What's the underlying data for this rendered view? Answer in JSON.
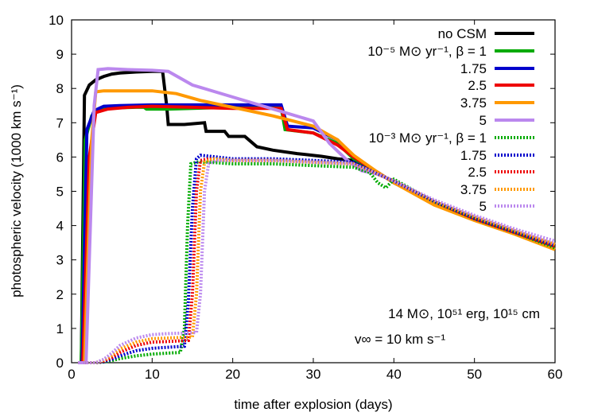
{
  "chart_data": {
    "type": "line",
    "xlabel": "time after explosion (days)",
    "ylabel": "photospheric velocity (1000 km s⁻¹)",
    "xlim": [
      0,
      60
    ],
    "ylim": [
      0,
      10
    ],
    "xticks": [
      0,
      10,
      20,
      30,
      40,
      50,
      60
    ],
    "yticks": [
      0,
      1,
      2,
      3,
      4,
      5,
      6,
      7,
      8,
      9,
      10
    ],
    "grid": false,
    "legend_position": "top-right",
    "annotation": {
      "line1": "14 M⊙, 10⁵¹ erg, 10¹⁵ cm",
      "line2": "v∞ = 10 km s⁻¹"
    },
    "legend_headers": {
      "group_a": "10⁻⁵ M⊙ yr⁻¹, β = 1",
      "group_b": "10⁻³ M⊙ yr⁻¹, β = 1"
    },
    "series": [
      {
        "name": "no CSM",
        "color": "#000000",
        "style": "solid",
        "x": [
          0.8,
          1.2,
          1.6,
          2.2,
          3,
          4,
          5,
          6,
          8,
          10,
          11.3,
          11.8,
          12,
          14,
          16.5,
          16.7,
          19,
          19.5,
          21.5,
          22,
          23,
          25,
          28,
          31,
          33,
          35,
          38,
          40,
          45,
          50,
          55,
          60
        ],
        "y": [
          0,
          0,
          7.8,
          8.1,
          8.25,
          8.35,
          8.42,
          8.45,
          8.48,
          8.5,
          8.5,
          7.5,
          6.95,
          6.95,
          7.0,
          6.75,
          6.75,
          6.6,
          6.6,
          6.5,
          6.3,
          6.2,
          6.1,
          6.02,
          5.95,
          5.9,
          5.55,
          5.25,
          4.65,
          4.2,
          3.8,
          3.35
        ]
      },
      {
        "name": "1",
        "color": "#00aa00",
        "style": "solid",
        "x": [
          0.8,
          1.2,
          1.7,
          2.5,
          3.5,
          5,
          8,
          9,
          9.3,
          12,
          15,
          20,
          26,
          26.5,
          30,
          33,
          35,
          38,
          40,
          45,
          50,
          55,
          60
        ],
        "y": [
          0,
          0,
          6.5,
          7.2,
          7.38,
          7.43,
          7.45,
          7.45,
          7.4,
          7.4,
          7.42,
          7.45,
          7.45,
          6.8,
          6.7,
          6.4,
          5.95,
          5.55,
          5.25,
          4.65,
          4.2,
          3.8,
          3.35
        ]
      },
      {
        "name": "1.75",
        "color": "#0000cc",
        "style": "solid",
        "x": [
          0.8,
          1.3,
          1.9,
          2.8,
          4,
          6,
          10,
          15,
          20,
          26,
          26.8,
          30,
          33,
          35,
          38,
          40,
          45,
          50,
          55,
          60
        ],
        "y": [
          0,
          0,
          6.8,
          7.35,
          7.48,
          7.5,
          7.52,
          7.52,
          7.52,
          7.52,
          6.9,
          6.85,
          6.5,
          6.0,
          5.55,
          5.25,
          4.65,
          4.2,
          3.8,
          3.35
        ]
      },
      {
        "name": "2.5",
        "color": "#ee0000",
        "style": "solid",
        "x": [
          0.8,
          1.4,
          2.2,
          3,
          4.5,
          7,
          10,
          15,
          20,
          26,
          26.8,
          30,
          33,
          35,
          38,
          40,
          45,
          50,
          55,
          60
        ],
        "y": [
          0,
          0,
          6.0,
          7.3,
          7.4,
          7.45,
          7.48,
          7.45,
          7.42,
          7.42,
          6.8,
          6.7,
          6.35,
          6.0,
          5.55,
          5.25,
          4.65,
          4.2,
          3.8,
          3.35
        ]
      },
      {
        "name": "3.75",
        "color": "#ff9900",
        "style": "solid",
        "x": [
          0.8,
          1.6,
          2.5,
          3,
          4,
          6,
          10,
          13,
          16,
          20,
          25,
          30,
          33,
          35,
          38,
          40,
          45,
          50,
          55,
          60
        ],
        "y": [
          0,
          0,
          6.5,
          7.9,
          7.93,
          7.93,
          7.93,
          7.85,
          7.65,
          7.45,
          7.2,
          6.9,
          6.5,
          6.05,
          5.55,
          5.25,
          4.6,
          4.15,
          3.75,
          3.3
        ]
      },
      {
        "name": "5",
        "color": "#bb88ee",
        "style": "solid",
        "x": [
          0.8,
          1.8,
          2.8,
          3.3,
          4.5,
          7,
          10,
          12,
          15,
          20,
          25,
          30,
          32,
          34,
          36,
          38,
          40,
          45,
          50,
          55,
          60
        ],
        "y": [
          0,
          0,
          7.5,
          8.55,
          8.58,
          8.55,
          8.53,
          8.5,
          8.1,
          7.75,
          7.4,
          7.05,
          6.4,
          5.95,
          5.6,
          5.5,
          5.3,
          4.7,
          4.25,
          3.85,
          3.45
        ]
      },
      {
        "name": "1",
        "color": "#00aa00",
        "style": "dotted",
        "x": [
          1.5,
          3,
          4,
          5,
          6,
          8,
          10,
          12,
          13.5,
          14,
          14.4,
          14.8,
          15.5,
          17,
          20,
          25,
          30,
          35,
          37,
          38,
          39,
          40,
          45,
          50,
          55,
          60
        ],
        "y": [
          0,
          0,
          0.02,
          0.06,
          0.12,
          0.2,
          0.25,
          0.28,
          0.3,
          1.0,
          4.0,
          5.8,
          5.85,
          5.85,
          5.8,
          5.8,
          5.75,
          5.7,
          5.55,
          5.25,
          5.1,
          5.35,
          4.7,
          4.2,
          3.8,
          3.35
        ]
      },
      {
        "name": "1.75",
        "color": "#0000cc",
        "style": "dotted",
        "x": [
          1.5,
          3,
          4,
          5,
          6,
          8,
          10,
          12,
          14,
          14.5,
          15,
          15.5,
          16,
          18,
          20,
          25,
          30,
          35,
          38,
          40,
          45,
          50,
          55,
          60
        ],
        "y": [
          0,
          0,
          0.03,
          0.1,
          0.2,
          0.35,
          0.42,
          0.45,
          0.48,
          1.8,
          4.5,
          5.95,
          6.05,
          6.0,
          5.95,
          5.95,
          5.9,
          5.85,
          5.5,
          5.3,
          4.7,
          4.2,
          3.8,
          3.4
        ]
      },
      {
        "name": "2.5",
        "color": "#ee0000",
        "style": "dotted",
        "x": [
          1.5,
          3,
          4,
          5,
          6,
          8,
          10,
          12,
          14.5,
          15,
          15.5,
          16,
          17,
          20,
          25,
          30,
          35,
          38,
          40,
          45,
          50,
          55,
          60
        ],
        "y": [
          0,
          0,
          0.05,
          0.15,
          0.3,
          0.5,
          0.6,
          0.62,
          0.65,
          2.0,
          5.0,
          5.9,
          5.95,
          5.9,
          5.9,
          5.85,
          5.8,
          5.5,
          5.3,
          4.7,
          4.2,
          3.8,
          3.4
        ]
      },
      {
        "name": "3.75",
        "color": "#ff9900",
        "style": "dotted",
        "x": [
          1.5,
          3,
          4,
          5,
          6,
          8,
          10,
          12,
          15,
          15.5,
          16,
          16.5,
          17.5,
          20,
          25,
          30,
          35,
          38,
          40,
          45,
          50,
          55,
          60
        ],
        "y": [
          0,
          0,
          0.08,
          0.22,
          0.4,
          0.6,
          0.7,
          0.72,
          0.75,
          2.0,
          5.0,
          5.85,
          5.95,
          5.9,
          5.9,
          5.85,
          5.8,
          5.5,
          5.3,
          4.7,
          4.25,
          3.85,
          3.45
        ]
      },
      {
        "name": "5",
        "color": "#bb88ee",
        "style": "dotted",
        "x": [
          1.5,
          3,
          4,
          5,
          6,
          8,
          10,
          12,
          15.5,
          16,
          16.5,
          17,
          18,
          20,
          25,
          30,
          35,
          38,
          40,
          45,
          50,
          55,
          60
        ],
        "y": [
          0,
          0,
          0.1,
          0.28,
          0.5,
          0.72,
          0.82,
          0.85,
          0.88,
          2.0,
          5.0,
          5.8,
          5.9,
          5.9,
          5.9,
          5.85,
          5.8,
          5.5,
          5.3,
          4.75,
          4.3,
          3.9,
          3.55
        ]
      }
    ]
  }
}
